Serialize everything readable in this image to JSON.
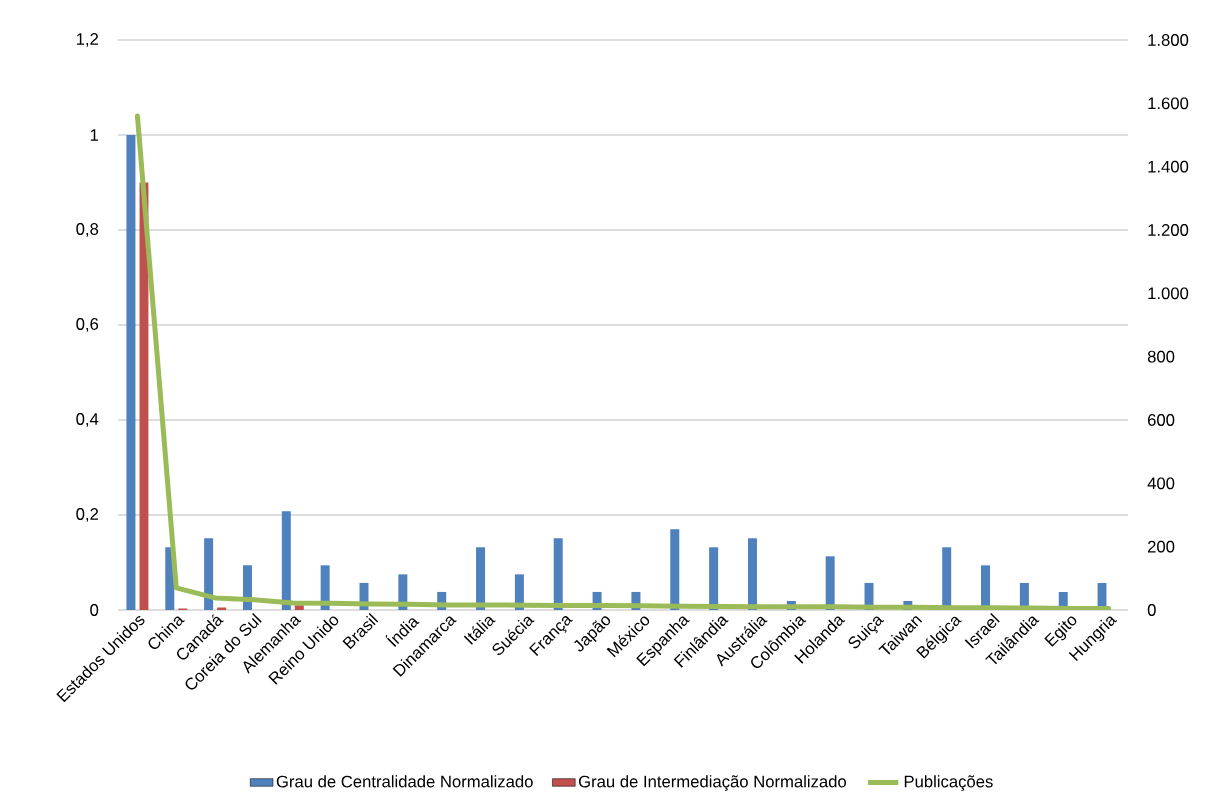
{
  "chart_data": {
    "type": "bar",
    "categories": [
      "Estados Unidos",
      "China",
      "Canadá",
      "Coreia do Sul",
      "Alemanha",
      "Reino Unido",
      "Brasil",
      "Índia",
      "Dinamarca",
      "Itália",
      "Suécia",
      "França",
      "Japão",
      "México",
      "Espanha",
      "Finlândia",
      "Austrália",
      "Colômbia",
      "Holanda",
      "Suiça",
      "Taiwan",
      "Bélgica",
      "Israel",
      "Tailândia",
      "Egito",
      "Hungria"
    ],
    "series": [
      {
        "name": "Grau de Centralidade Normalizado",
        "color": "#4f81bd",
        "values": [
          1.0,
          0.132,
          0.151,
          0.094,
          0.208,
          0.094,
          0.057,
          0.075,
          0.038,
          0.132,
          0.075,
          0.151,
          0.038,
          0.038,
          0.17,
          0.132,
          0.151,
          0.019,
          0.113,
          0.057,
          0.019,
          0.132,
          0.094,
          0.057,
          0.038,
          0.057
        ]
      },
      {
        "name": "Grau de Intermediação Normalizado",
        "color": "#c0504d",
        "values": [
          0.9,
          0.003,
          0.005,
          0,
          0.01,
          0,
          0,
          0,
          0,
          0,
          0,
          0,
          0,
          0,
          0,
          0,
          0,
          0,
          0,
          0,
          0,
          0,
          0,
          0,
          0,
          0
        ]
      },
      {
        "name": "Publicações",
        "type": "line",
        "axis": "y2",
        "color": "#9bbb59",
        "values": [
          1560,
          70,
          38,
          32,
          22,
          21,
          19,
          18,
          16,
          16,
          15,
          14,
          14,
          13,
          12,
          11,
          10,
          10,
          10,
          9,
          9,
          7,
          7,
          6,
          5,
          5
        ]
      }
    ],
    "ylim": [
      0,
      1.2
    ],
    "yticks": [
      {
        "value": 0,
        "label": "0"
      },
      {
        "value": 0.2,
        "label": "0,2"
      },
      {
        "value": 0.4,
        "label": "0,4"
      },
      {
        "value": 0.6,
        "label": "0,6"
      },
      {
        "value": 0.8,
        "label": "0,8"
      },
      {
        "value": 1,
        "label": "1"
      },
      {
        "value": 1.2,
        "label": "1,2"
      }
    ],
    "y2lim": [
      0,
      1800
    ],
    "y2ticks": [
      0,
      200,
      400,
      600,
      800,
      {
        "value": 1000,
        "label": "1.000"
      },
      {
        "value": 1200,
        "label": "1.200"
      },
      {
        "value": 1400,
        "label": "1.400"
      },
      {
        "value": 1600,
        "label": "1.600"
      },
      {
        "value": 1800,
        "label": "1.800"
      }
    ],
    "grid": "y",
    "legend": "bottom"
  }
}
